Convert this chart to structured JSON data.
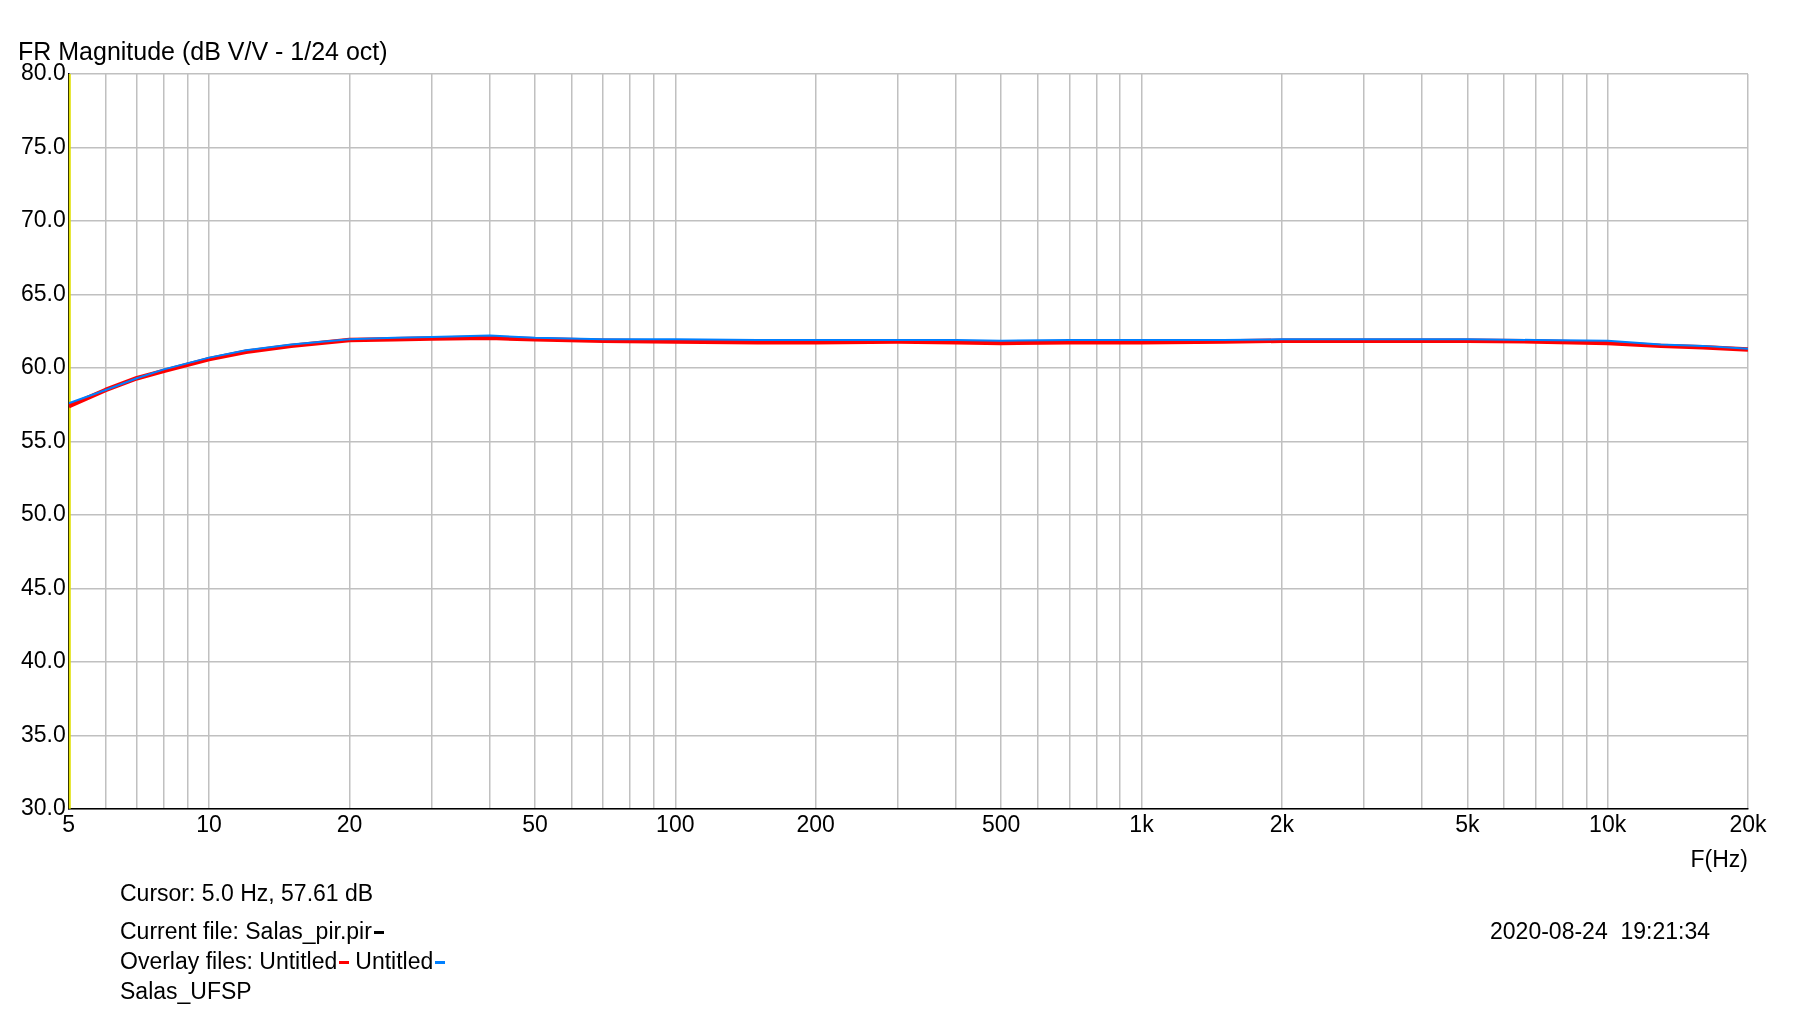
{
  "chart_data": {
    "type": "line",
    "title": "FR Magnitude (dB V/V - 1/24 oct)",
    "xlabel": "F(Hz)",
    "legend_title": "Overlay files:",
    "legend": "bottom",
    "grid": true,
    "log": "x",
    "marker": "none",
    "line_style": "solid",
    "x": [
      5,
      6,
      7,
      8,
      10,
      12,
      15,
      20,
      25,
      30,
      40,
      50,
      70,
      100,
      150,
      200,
      300,
      400,
      500,
      700,
      1000,
      1500,
      2000,
      3000,
      5000,
      7000,
      10000,
      13000,
      16000,
      20000
    ],
    "series": [
      {
        "name": "Untitled",
        "color": "#ff0000",
        "values": [
          57.4,
          58.5,
          59.3,
          59.8,
          60.6,
          61.1,
          61.5,
          61.9,
          61.95,
          62.0,
          62.05,
          61.95,
          61.85,
          61.8,
          61.75,
          61.75,
          61.8,
          61.75,
          61.7,
          61.75,
          61.75,
          61.8,
          61.85,
          61.85,
          61.85,
          61.8,
          61.7,
          61.5,
          61.4,
          61.25
        ]
      },
      {
        "name": "Untitled",
        "color": "#0080ff",
        "values": [
          57.6,
          58.5,
          59.3,
          59.9,
          60.7,
          61.2,
          61.6,
          61.95,
          62.05,
          62.1,
          62.2,
          62.05,
          61.95,
          61.95,
          61.9,
          61.9,
          61.9,
          61.9,
          61.85,
          61.9,
          61.9,
          61.9,
          61.95,
          61.95,
          61.95,
          61.9,
          61.85,
          61.6,
          61.5,
          61.3
        ]
      }
    ],
    "xlim": [
      5,
      20000
    ],
    "xticks": [
      {
        "value": 5,
        "label": "5"
      },
      {
        "value": 6,
        "label": null
      },
      {
        "value": 7,
        "label": null
      },
      {
        "value": 8,
        "label": null
      },
      {
        "value": 9,
        "label": null
      },
      {
        "value": 10,
        "label": "10"
      },
      {
        "value": 20,
        "label": "20"
      },
      {
        "value": 30,
        "label": null
      },
      {
        "value": 40,
        "label": null
      },
      {
        "value": 50,
        "label": "50"
      },
      {
        "value": 60,
        "label": null
      },
      {
        "value": 70,
        "label": null
      },
      {
        "value": 80,
        "label": null
      },
      {
        "value": 90,
        "label": null
      },
      {
        "value": 100,
        "label": "100"
      },
      {
        "value": 200,
        "label": "200"
      },
      {
        "value": 300,
        "label": null
      },
      {
        "value": 400,
        "label": null
      },
      {
        "value": 500,
        "label": "500"
      },
      {
        "value": 600,
        "label": null
      },
      {
        "value": 700,
        "label": null
      },
      {
        "value": 800,
        "label": null
      },
      {
        "value": 900,
        "label": null
      },
      {
        "value": 1000,
        "label": "1k"
      },
      {
        "value": 2000,
        "label": "2k"
      },
      {
        "value": 3000,
        "label": null
      },
      {
        "value": 4000,
        "label": null
      },
      {
        "value": 5000,
        "label": "5k"
      },
      {
        "value": 6000,
        "label": null
      },
      {
        "value": 7000,
        "label": null
      },
      {
        "value": 8000,
        "label": null
      },
      {
        "value": 9000,
        "label": null
      },
      {
        "value": 10000,
        "label": "10k"
      },
      {
        "value": 20000,
        "label": "20k"
      }
    ],
    "ylim": [
      30,
      80
    ],
    "yticks": [
      {
        "value": 30,
        "label": "30.0"
      },
      {
        "value": 35,
        "label": "35.0"
      },
      {
        "value": 40,
        "label": "40.0"
      },
      {
        "value": 45,
        "label": "45.0"
      },
      {
        "value": 50,
        "label": "50.0"
      },
      {
        "value": 55,
        "label": "55.0"
      },
      {
        "value": 60,
        "label": "60.0"
      },
      {
        "value": 65,
        "label": "65.0"
      },
      {
        "value": 70,
        "label": "70.0"
      },
      {
        "value": 75,
        "label": "75.0"
      },
      {
        "value": 80,
        "label": "80.0"
      }
    ],
    "ref_lines": [
      {
        "axis": "x",
        "value": 5,
        "color": "#e0e000"
      }
    ],
    "annotations": [
      "Cursor: 5.0 Hz, 57.61 dB",
      "Current file: Salas_pir.pir",
      "2020-08-24  19:21:34",
      "Salas_UFSP"
    ]
  }
}
